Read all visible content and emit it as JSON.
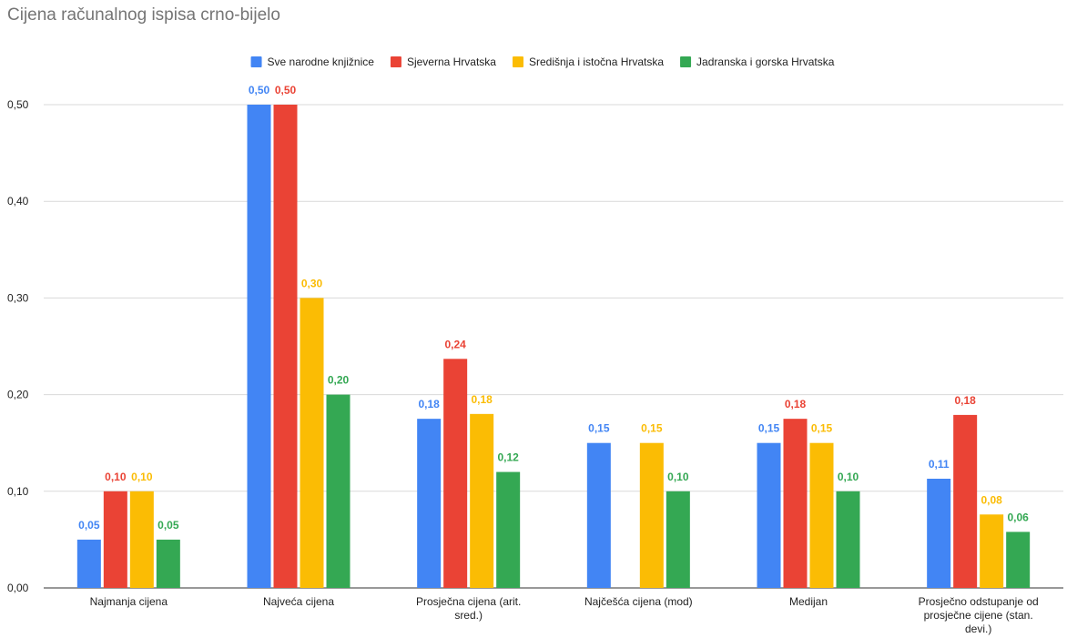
{
  "chart_data": {
    "type": "bar",
    "title": "Cijena računalnog ispisa crno-bijelo",
    "xlabel": "",
    "ylabel": "",
    "ylim": [
      0,
      0.5
    ],
    "yticks": [
      "0,00",
      "0,10",
      "0,20",
      "0,30",
      "0,40",
      "0,50"
    ],
    "grid": true,
    "legend_position": "top",
    "categories": [
      [
        "Najmanja cijena"
      ],
      [
        "Najveća cijena"
      ],
      [
        "Prosječna cijena (arit.",
        "sred.)"
      ],
      [
        "Najčešća cijena (mod)"
      ],
      [
        "Medijan"
      ],
      [
        "Prosječno odstupanje od",
        "prosječne cijene (stan.",
        "devi.)"
      ]
    ],
    "series": [
      {
        "name": "Sve narodne knjižnice",
        "color": "#4285F4",
        "values": [
          0.05,
          0.5,
          0.175,
          0.15,
          0.15,
          0.113
        ],
        "labels": [
          "0,05",
          "0,50",
          "0,18",
          "0,15",
          "0,15",
          "0,11"
        ]
      },
      {
        "name": "Sjeverna Hrvatska",
        "color": "#EA4335",
        "values": [
          0.1,
          0.5,
          0.237,
          null,
          0.175,
          0.179
        ],
        "labels": [
          "0,10",
          "0,50",
          "0,24",
          "",
          "0,18",
          "0,18"
        ]
      },
      {
        "name": "Središnja i istočna Hrvatska",
        "color": "#FBBC04",
        "values": [
          0.1,
          0.3,
          0.18,
          0.15,
          0.15,
          0.076
        ],
        "labels": [
          "0,10",
          "0,30",
          "0,18",
          "0,15",
          "0,15",
          "0,08"
        ]
      },
      {
        "name": "Jadranska i gorska Hrvatska",
        "color": "#34A853",
        "values": [
          0.05,
          0.2,
          0.12,
          0.1,
          0.1,
          0.058
        ],
        "labels": [
          "0,05",
          "0,20",
          "0,12",
          "0,10",
          "0,10",
          "0,06"
        ]
      }
    ]
  }
}
